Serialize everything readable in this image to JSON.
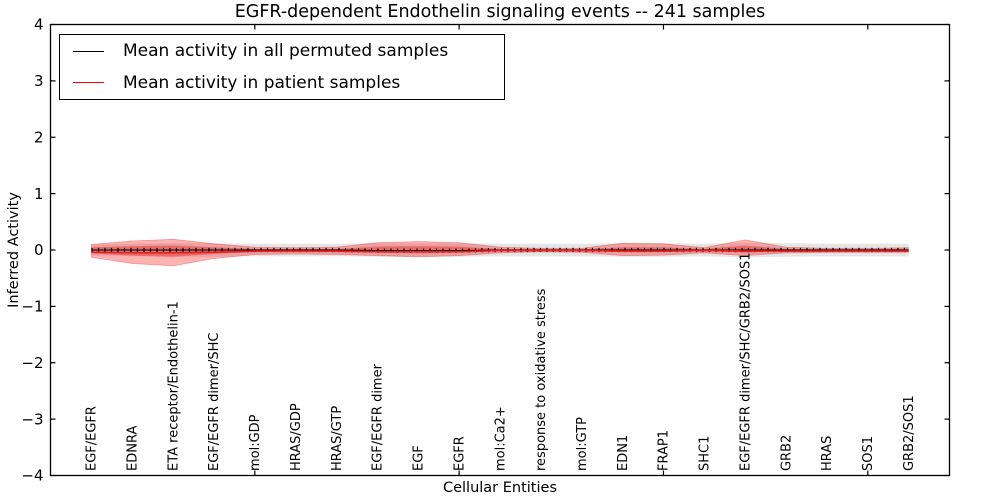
{
  "title": "EGFR-dependent Endothelin signaling events -- 241 samples",
  "axes": {
    "xlabel": "Cellular Entities",
    "ylabel": "Inferred Activity",
    "xlim": [
      0,
      22
    ],
    "ylim": [
      -4,
      4
    ],
    "ytick_values": [
      -4,
      -3,
      -2,
      -1,
      0,
      1,
      2,
      3,
      4
    ],
    "ytick_labels": [
      "−4",
      "−3",
      "−2",
      "−1",
      "0",
      "1",
      "2",
      "3",
      "4"
    ],
    "xtick_numeric_values": [
      5,
      10,
      15,
      20
    ],
    "grid": "off"
  },
  "legend": {
    "position": "upper-left",
    "items": [
      {
        "label": "Mean activity in all permuted samples",
        "color": "#000000"
      },
      {
        "label": "Mean activity in patient samples",
        "color": "#ff0000"
      }
    ]
  },
  "chart_data": {
    "type": "line",
    "subtype": "mean-lines-with-violin-bands",
    "title": "EGFR-dependent Endothelin signaling events -- 241 samples",
    "xlabel": "Cellular Entities",
    "ylabel": "Inferred Activity",
    "ylim": [
      -4,
      4
    ],
    "categories": [
      "EGF/EGFR",
      "EDNRA",
      "ETA receptor/Endothelin-1",
      "EGF/EGFR dimer/SHC",
      "mol:GDP",
      "HRAS/GDP",
      "HRAS/GTP",
      "EGF/EGFR dimer",
      "EGF",
      "EGFR",
      "mol:Ca2+",
      "response to oxidative stress",
      "mol:GTP",
      "EDN1",
      "FRAP1",
      "SHC1",
      "EGF/EGFR dimer/SHC/GRB2/SOS1",
      "GRB2",
      "HRAS",
      "SOS1",
      "GRB2/SOS1"
    ],
    "x_positions": [
      1,
      2,
      3,
      4,
      5,
      6,
      7,
      8,
      9,
      10,
      11,
      12,
      13,
      14,
      15,
      16,
      17,
      18,
      19,
      20,
      21
    ],
    "series": [
      {
        "name": "Mean activity in all permuted samples",
        "color": "#000000",
        "style": "solid-with-tick-markers",
        "values": [
          0,
          0,
          0,
          0,
          0,
          0,
          0,
          -0.01,
          -0.01,
          -0.01,
          0,
          0,
          0,
          0,
          0,
          0,
          0,
          0,
          0,
          0,
          0
        ]
      },
      {
        "name": "Mean activity in patient samples",
        "color": "#e62222",
        "style": "solid",
        "values": [
          -0.04,
          -0.05,
          -0.05,
          -0.04,
          -0.02,
          -0.02,
          -0.02,
          -0.03,
          -0.03,
          -0.03,
          -0.01,
          -0.01,
          -0.01,
          -0.02,
          -0.02,
          -0.01,
          -0.02,
          -0.02,
          -0.02,
          -0.02,
          -0.02
        ]
      }
    ],
    "bands": [
      {
        "name": "permuted-samples-range",
        "fill": "rgba(0,0,0,0.10)",
        "edge": "none",
        "upper": [
          0.1,
          0.11,
          0.12,
          0.12,
          0.11,
          0.11,
          0.11,
          0.12,
          0.12,
          0.12,
          0.11,
          0.11,
          0.11,
          0.12,
          0.12,
          0.11,
          0.13,
          0.12,
          0.11,
          0.11,
          0.11
        ],
        "lower": [
          -0.1,
          -0.11,
          -0.12,
          -0.12,
          -0.11,
          -0.11,
          -0.11,
          -0.12,
          -0.12,
          -0.12,
          -0.11,
          -0.11,
          -0.11,
          -0.12,
          -0.12,
          -0.11,
          -0.13,
          -0.12,
          -0.11,
          -0.11,
          -0.11
        ]
      },
      {
        "name": "patient-samples-range-outer",
        "fill": "rgba(255,0,0,0.30)",
        "edge": "rgba(220,30,30,0.35)",
        "upper": [
          0.1,
          0.16,
          0.19,
          0.11,
          0.05,
          0.04,
          0.05,
          0.13,
          0.15,
          0.13,
          0.05,
          0.03,
          0.03,
          0.12,
          0.11,
          0.04,
          0.18,
          0.05,
          0.03,
          0.03,
          0.04
        ],
        "lower": [
          -0.13,
          -0.24,
          -0.28,
          -0.15,
          -0.08,
          -0.07,
          -0.08,
          -0.1,
          -0.12,
          -0.1,
          -0.05,
          -0.03,
          -0.04,
          -0.1,
          -0.09,
          -0.05,
          -0.1,
          -0.05,
          -0.04,
          -0.04,
          -0.04
        ]
      },
      {
        "name": "patient-samples-range-inner",
        "fill": "rgba(220,20,20,0.38)",
        "edge": "none",
        "upper": [
          0.05,
          0.07,
          0.08,
          0.05,
          0.02,
          0.02,
          0.02,
          0.06,
          0.07,
          0.06,
          0.02,
          0.015,
          0.015,
          0.05,
          0.05,
          0.02,
          0.08,
          0.02,
          0.015,
          0.015,
          0.02
        ],
        "lower": [
          -0.06,
          -0.1,
          -0.12,
          -0.07,
          -0.04,
          -0.03,
          -0.04,
          -0.05,
          -0.06,
          -0.05,
          -0.02,
          -0.015,
          -0.02,
          -0.04,
          -0.04,
          -0.02,
          -0.05,
          -0.02,
          -0.02,
          -0.02,
          -0.02
        ]
      }
    ],
    "legend_entries": [
      "Mean activity in all permuted samples",
      "Mean activity in patient samples"
    ]
  }
}
